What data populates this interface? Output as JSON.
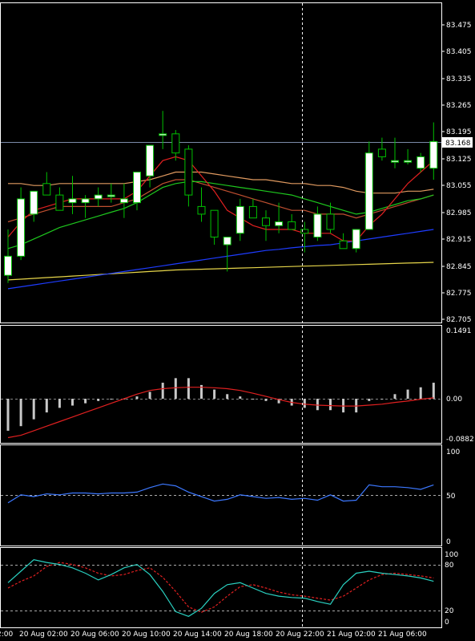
{
  "colors": {
    "background": "#000000",
    "frame": "#ffffff",
    "bull_body": "#ffffff",
    "candle_outline": "#00c000",
    "ma_blue": "#1e3cff",
    "ma_yellow": "#e6d54a",
    "ma_green": "#1ec81e",
    "ma_red": "#e02020",
    "ma_orange": "#e09a60",
    "macd_hist": "#c8c8c8",
    "macd_signal": "#e02020",
    "rsi_line": "#3c78ff",
    "stoch_main": "#2ad0c0",
    "stoch_signal": "#e02020",
    "current_price_line": "#7b8aa8",
    "current_price_box": "#ffffff"
  },
  "price_panel": {
    "ticks": [
      "83.475",
      "83.405",
      "83.335",
      "83.265",
      "83.195",
      "83.125",
      "83.055",
      "82.985",
      "82.915",
      "82.845",
      "82.775",
      "82.705"
    ],
    "current_price": "83.168",
    "current_price_value": 83.168
  },
  "macd_panel": {
    "ticks": [
      "0.1491",
      "0.00",
      "-0.0882"
    ]
  },
  "rsi_panel": {
    "ticks": [
      "100",
      "50",
      "0"
    ]
  },
  "stoch_panel": {
    "ticks": [
      "100",
      "80",
      "20",
      "0"
    ]
  },
  "time_axis": {
    "labels": [
      "2:00",
      "20 Aug 02:00",
      "20 Aug 06:00",
      "20 Aug 10:00",
      "20 Aug 14:00",
      "20 Aug 18:00",
      "20 Aug 22:00",
      "21 Aug 02:00",
      "21 Aug 06:00"
    ]
  },
  "chart_data": {
    "type": "candlestick",
    "candles": [
      [
        82.82,
        82.94,
        82.8,
        82.87
      ],
      [
        82.87,
        83.05,
        82.86,
        83.02
      ],
      [
        82.98,
        83.04,
        82.96,
        83.04
      ],
      [
        83.06,
        83.09,
        83.03,
        83.03
      ],
      [
        83.03,
        83.05,
        82.99,
        82.99
      ],
      [
        83.01,
        83.08,
        82.98,
        83.02
      ],
      [
        83.01,
        83.03,
        82.97,
        83.02
      ],
      [
        83.02,
        83.05,
        83.0,
        83.03
      ],
      [
        83.03,
        83.06,
        83.01,
        83.03
      ],
      [
        83.01,
        83.06,
        82.97,
        83.02
      ],
      [
        83.01,
        83.09,
        82.99,
        83.09
      ],
      [
        83.08,
        83.16,
        83.05,
        83.16
      ],
      [
        83.19,
        83.25,
        83.15,
        83.19
      ],
      [
        83.19,
        83.2,
        83.12,
        83.14
      ],
      [
        83.15,
        83.16,
        83.0,
        83.03
      ],
      [
        83.0,
        83.05,
        82.96,
        82.98
      ],
      [
        82.99,
        82.99,
        82.9,
        82.92
      ],
      [
        82.9,
        82.92,
        82.83,
        82.92
      ],
      [
        82.93,
        83.02,
        82.91,
        83.0
      ],
      [
        83.0,
        83.02,
        82.97,
        82.97
      ],
      [
        82.97,
        82.99,
        82.91,
        82.95
      ],
      [
        82.95,
        83.01,
        82.93,
        82.96
      ],
      [
        82.96,
        82.98,
        82.94,
        82.94
      ],
      [
        82.94,
        82.96,
        82.88,
        82.93
      ],
      [
        82.92,
        83.0,
        82.91,
        82.98
      ],
      [
        82.98,
        83.01,
        82.93,
        82.94
      ],
      [
        82.91,
        82.93,
        82.89,
        82.89
      ],
      [
        82.89,
        82.94,
        82.88,
        82.94
      ],
      [
        82.94,
        83.17,
        82.94,
        83.14
      ],
      [
        83.15,
        83.18,
        83.12,
        83.13
      ],
      [
        83.12,
        83.18,
        83.1,
        83.12
      ],
      [
        83.12,
        83.15,
        83.11,
        83.12
      ],
      [
        83.1,
        83.14,
        83.09,
        83.13
      ],
      [
        83.1,
        83.22,
        83.07,
        83.17
      ]
    ],
    "ma_blue": [
      82.785,
      82.79,
      82.795,
      82.8,
      82.805,
      82.81,
      82.815,
      82.82,
      82.825,
      82.83,
      82.835,
      82.84,
      82.845,
      82.85,
      82.855,
      82.86,
      82.865,
      82.87,
      82.875,
      82.88,
      82.885,
      82.888,
      82.892,
      82.895,
      82.898,
      82.9,
      82.905,
      82.91,
      82.915,
      82.92,
      82.925,
      82.93,
      82.935,
      82.94
    ],
    "ma_yellow": [
      82.808,
      82.81,
      82.812,
      82.814,
      82.816,
      82.818,
      82.82,
      82.822,
      82.824,
      82.826,
      82.828,
      82.83,
      82.832,
      82.834,
      82.835,
      82.836,
      82.837,
      82.838,
      82.839,
      82.84,
      82.841,
      82.842,
      82.843,
      82.844,
      82.845,
      82.846,
      82.847,
      82.848,
      82.849,
      82.85,
      82.851,
      82.852,
      82.853,
      82.854
    ],
    "ma_green": [
      82.89,
      82.9,
      82.915,
      82.93,
      82.945,
      82.955,
      82.965,
      82.975,
      82.985,
      82.995,
      83.01,
      83.03,
      83.05,
      83.06,
      83.065,
      83.065,
      83.06,
      83.055,
      83.05,
      83.045,
      83.04,
      83.035,
      83.03,
      83.02,
      83.01,
      83.0,
      82.99,
      82.98,
      82.985,
      82.995,
      83.005,
      83.015,
      83.02,
      83.03
    ],
    "ma_red": [
      82.92,
      82.96,
      82.99,
      83.0,
      83.01,
      83.02,
      83.02,
      83.02,
      83.02,
      83.02,
      83.04,
      83.08,
      83.12,
      83.13,
      83.12,
      83.08,
      83.04,
      82.99,
      82.97,
      82.95,
      82.94,
      82.94,
      82.94,
      82.93,
      82.93,
      82.93,
      82.91,
      82.91,
      82.95,
      82.98,
      83.02,
      83.06,
      83.09,
      83.12
    ],
    "ma_orange": [
      83.06,
      83.06,
      83.055,
      83.055,
      83.06,
      83.06,
      83.06,
      83.06,
      83.06,
      83.06,
      83.065,
      83.07,
      83.08,
      83.09,
      83.09,
      83.09,
      83.085,
      83.08,
      83.075,
      83.07,
      83.07,
      83.065,
      83.06,
      83.06,
      83.055,
      83.055,
      83.05,
      83.04,
      83.035,
      83.035,
      83.035,
      83.04,
      83.04,
      83.045
    ],
    "ma_red2": [
      82.96,
      82.97,
      82.98,
      82.99,
      83.0,
      83.0,
      83.0,
      83.0,
      83.0,
      83.01,
      83.02,
      83.04,
      83.06,
      83.07,
      83.07,
      83.06,
      83.05,
      83.04,
      83.03,
      83.02,
      83.01,
      83.0,
      82.99,
      82.99,
      82.98,
      82.98,
      82.98,
      82.97,
      82.98,
      82.99,
      83.0,
      83.01,
      83.02,
      83.03
    ],
    "macd_hist": [
      -0.07,
      -0.06,
      -0.045,
      -0.03,
      -0.02,
      -0.015,
      -0.01,
      -0.005,
      0.0,
      0.0,
      0.005,
      0.015,
      0.035,
      0.045,
      0.045,
      0.03,
      0.02,
      0.01,
      0.005,
      0.0,
      -0.005,
      -0.01,
      -0.015,
      -0.02,
      -0.025,
      -0.025,
      -0.03,
      -0.03,
      -0.005,
      0.0,
      0.01,
      0.02,
      0.025,
      0.035
    ],
    "macd_signal": [
      -0.085,
      -0.08,
      -0.07,
      -0.06,
      -0.05,
      -0.04,
      -0.03,
      -0.02,
      -0.01,
      0.0,
      0.01,
      0.018,
      0.022,
      0.024,
      0.025,
      0.025,
      0.024,
      0.022,
      0.018,
      0.012,
      0.005,
      -0.002,
      -0.008,
      -0.012,
      -0.014,
      -0.015,
      -0.016,
      -0.016,
      -0.014,
      -0.012,
      -0.008,
      -0.005,
      -0.001,
      0.002
    ],
    "rsi": [
      43,
      52,
      50,
      53,
      52,
      54,
      54,
      53,
      54,
      54,
      55,
      60,
      64,
      62,
      55,
      50,
      45,
      47,
      52,
      50,
      48,
      49,
      47,
      48,
      46,
      52,
      45,
      46,
      63,
      61,
      61,
      60,
      58,
      63
    ],
    "stoch_main": [
      58,
      75,
      92,
      88,
      85,
      80,
      72,
      62,
      70,
      80,
      85,
      70,
      45,
      15,
      8,
      20,
      42,
      55,
      58,
      50,
      42,
      38,
      36,
      35,
      30,
      26,
      55,
      72,
      75,
      72,
      70,
      68,
      65,
      60
    ],
    "stoch_signal": [
      50,
      60,
      68,
      82,
      88,
      85,
      80,
      72,
      68,
      70,
      76,
      80,
      66,
      45,
      22,
      14,
      22,
      38,
      52,
      55,
      50,
      44,
      40,
      38,
      35,
      32,
      38,
      50,
      62,
      70,
      72,
      70,
      68,
      65
    ]
  }
}
